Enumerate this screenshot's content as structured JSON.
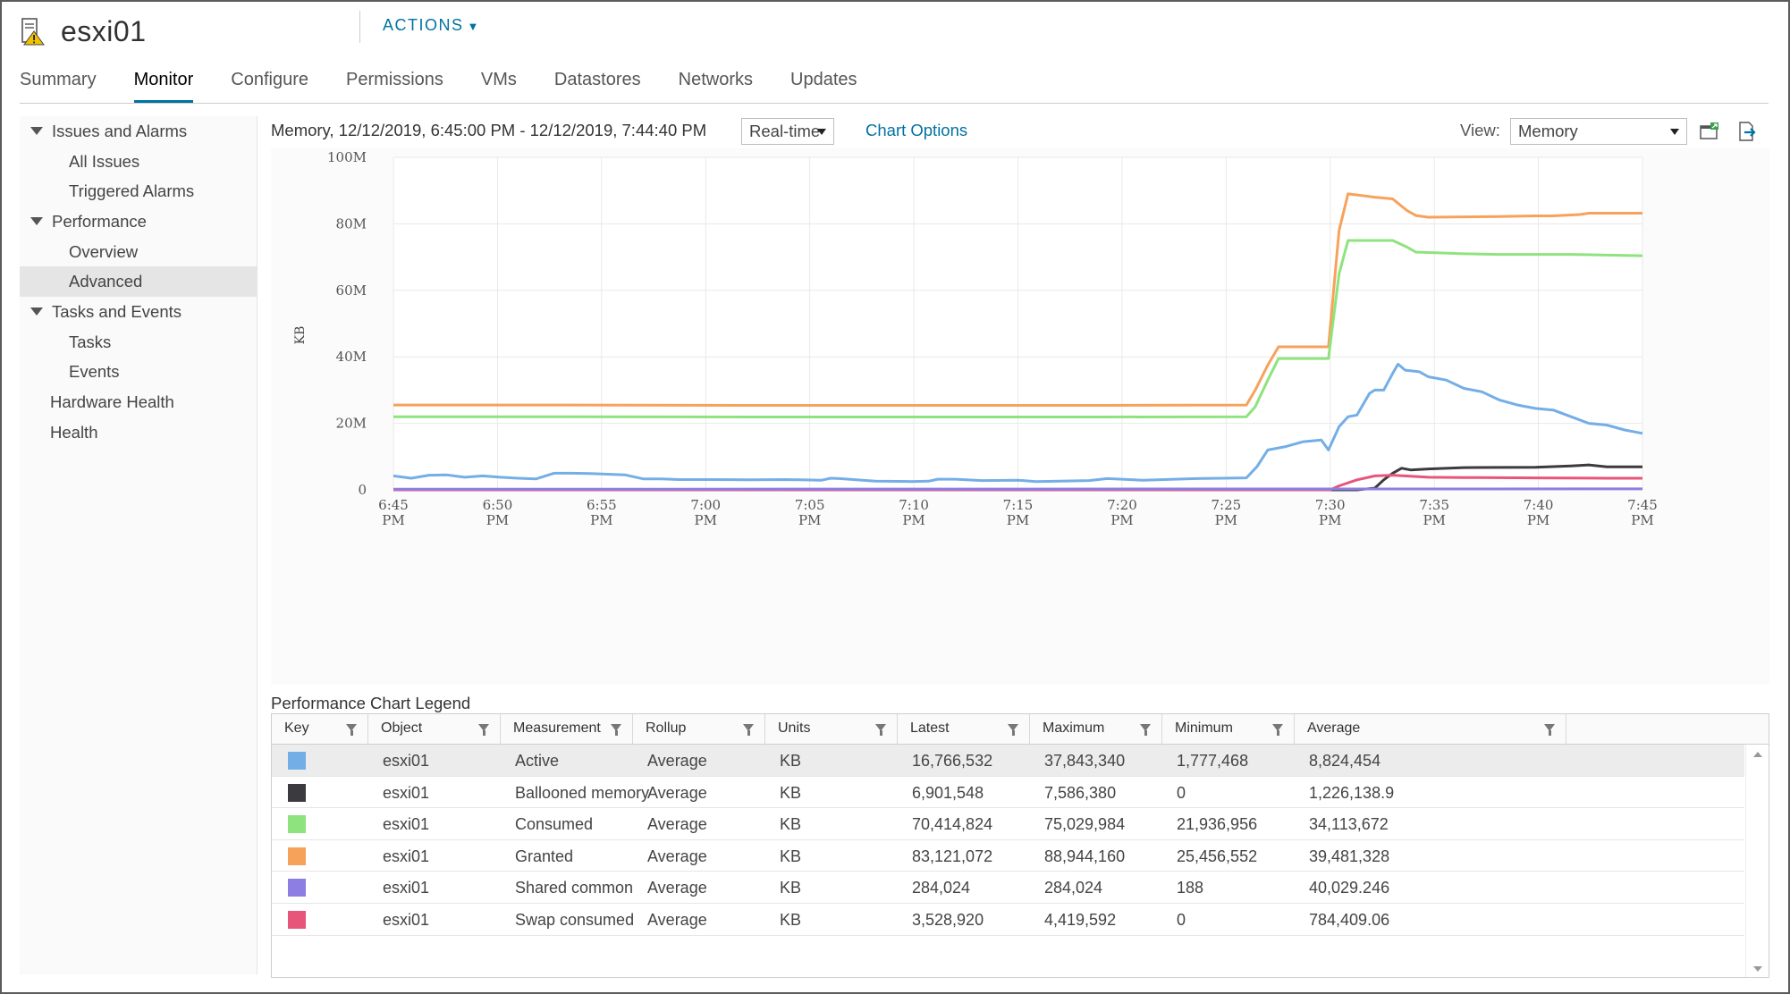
{
  "header": {
    "title": "esxi01",
    "actions_label": "ACTIONS",
    "icon": "host-warning-icon"
  },
  "tabs": [
    {
      "label": "Summary",
      "active": false
    },
    {
      "label": "Monitor",
      "active": true
    },
    {
      "label": "Configure",
      "active": false
    },
    {
      "label": "Permissions",
      "active": false
    },
    {
      "label": "VMs",
      "active": false
    },
    {
      "label": "Datastores",
      "active": false
    },
    {
      "label": "Networks",
      "active": false
    },
    {
      "label": "Updates",
      "active": false
    }
  ],
  "sidebar": {
    "groups": [
      {
        "label": "Issues and Alarms",
        "expanded": true,
        "items": [
          "All Issues",
          "Triggered Alarms"
        ]
      },
      {
        "label": "Performance",
        "expanded": true,
        "items": [
          "Overview",
          "Advanced"
        ]
      },
      {
        "label": "Tasks and Events",
        "expanded": true,
        "items": [
          "Tasks",
          "Events"
        ]
      },
      {
        "label": "Hardware Health",
        "expanded": false,
        "items": []
      },
      {
        "label": "Health",
        "expanded": false,
        "items": []
      }
    ],
    "selected": "Advanced"
  },
  "chart_header": {
    "title": "Memory, 12/12/2019, 6:45:00 PM - 12/12/2019, 7:44:40 PM",
    "timespan_value": "Real-time",
    "chart_options_label": "Chart Options",
    "view_label": "View:",
    "view_value": "Memory"
  },
  "chart_data": {
    "type": "line",
    "title": "",
    "ylabel": "KB",
    "ylim": [
      0,
      100000000
    ],
    "y_ticks": [
      "0",
      "20M",
      "40M",
      "60M",
      "80M",
      "100M"
    ],
    "x_ticks": [
      "6:45 PM",
      "6:50 PM",
      "6:55 PM",
      "7:00 PM",
      "7:05 PM",
      "7:10 PM",
      "7:15 PM",
      "7:20 PM",
      "7:25 PM",
      "7:30 PM",
      "7:35 PM",
      "7:40 PM",
      "7:45 PM"
    ],
    "x_minutes_range": [
      0,
      60
    ],
    "grid": true,
    "series": [
      {
        "name": "Granted",
        "color": "#f7a25b",
        "points": [
          [
            0,
            25.5
          ],
          [
            10,
            25.5
          ],
          [
            20,
            25.4
          ],
          [
            30,
            25.4
          ],
          [
            40,
            25.4
          ],
          [
            47.8,
            25.5
          ],
          [
            48.3,
            30
          ],
          [
            49,
            37.5
          ],
          [
            49.6,
            43
          ],
          [
            52,
            43
          ],
          [
            52.4,
            43
          ],
          [
            53,
            78
          ],
          [
            53.5,
            89
          ],
          [
            55,
            88
          ],
          [
            56,
            87.5
          ],
          [
            56.8,
            84
          ],
          [
            57.3,
            82.5
          ],
          [
            58,
            82
          ],
          [
            62,
            82.2
          ],
          [
            64,
            82.4
          ],
          [
            65,
            82.4
          ],
          [
            66.5,
            82.8
          ],
          [
            67,
            83.2
          ],
          [
            70,
            83.2
          ]
        ]
      },
      {
        "name": "Consumed",
        "color": "#8fe37e",
        "points": [
          [
            0,
            22
          ],
          [
            10,
            22
          ],
          [
            20,
            21.9
          ],
          [
            30,
            21.9
          ],
          [
            40,
            21.9
          ],
          [
            47.8,
            22
          ],
          [
            48.3,
            25
          ],
          [
            49,
            33
          ],
          [
            49.6,
            39.5
          ],
          [
            52,
            39.5
          ],
          [
            52.4,
            39.5
          ],
          [
            53,
            65
          ],
          [
            53.5,
            75
          ],
          [
            56,
            75
          ],
          [
            56.8,
            73
          ],
          [
            57.3,
            71.5
          ],
          [
            60,
            71
          ],
          [
            62,
            70.8
          ],
          [
            66,
            70.8
          ],
          [
            70,
            70.4
          ]
        ]
      },
      {
        "name": "Active",
        "color": "#74aee6",
        "points": [
          [
            0,
            4.2
          ],
          [
            1,
            3.5
          ],
          [
            2,
            4.4
          ],
          [
            3,
            4.5
          ],
          [
            4,
            3.8
          ],
          [
            5,
            4.2
          ],
          [
            6,
            3.8
          ],
          [
            7,
            3.5
          ],
          [
            8,
            3.3
          ],
          [
            9,
            5
          ],
          [
            10,
            5
          ],
          [
            11,
            4.9
          ],
          [
            12,
            4.7
          ],
          [
            13,
            4.5
          ],
          [
            14,
            3.3
          ],
          [
            15,
            3.3
          ],
          [
            16,
            3.1
          ],
          [
            18,
            3.1
          ],
          [
            20,
            3.0
          ],
          [
            22,
            3.1
          ],
          [
            24,
            2.9
          ],
          [
            24.5,
            3.5
          ],
          [
            25,
            3.4
          ],
          [
            27,
            2.6
          ],
          [
            29,
            2.5
          ],
          [
            30,
            2.6
          ],
          [
            30.5,
            3.2
          ],
          [
            31.5,
            3.2
          ],
          [
            33,
            2.8
          ],
          [
            35,
            2.9
          ],
          [
            36,
            2.5
          ],
          [
            39,
            2.8
          ],
          [
            40,
            3.4
          ],
          [
            42,
            2.9
          ],
          [
            45,
            3.4
          ],
          [
            47.8,
            3.6
          ],
          [
            48.4,
            7
          ],
          [
            49,
            12
          ],
          [
            50,
            13
          ],
          [
            51,
            14.5
          ],
          [
            52,
            15
          ],
          [
            52.4,
            12
          ],
          [
            53,
            19
          ],
          [
            53.5,
            22
          ],
          [
            54,
            22.5
          ],
          [
            54.7,
            29
          ],
          [
            55,
            30
          ],
          [
            55.5,
            30
          ],
          [
            56,
            35
          ],
          [
            56.3,
            37.8
          ],
          [
            56.7,
            36
          ],
          [
            57.5,
            35.5
          ],
          [
            58,
            34
          ],
          [
            59,
            33
          ],
          [
            60,
            30.5
          ],
          [
            61,
            29.5
          ],
          [
            62,
            27
          ],
          [
            63,
            25.5
          ],
          [
            64,
            24.5
          ],
          [
            65,
            24
          ],
          [
            66,
            22
          ],
          [
            67,
            20
          ],
          [
            68,
            19.5
          ],
          [
            69,
            18
          ],
          [
            70,
            17
          ]
        ]
      },
      {
        "name": "Ballooned memory",
        "color": "#3b3b3f",
        "points": [
          [
            0,
            0
          ],
          [
            54,
            0
          ],
          [
            55,
            0.5
          ],
          [
            55.5,
            3
          ],
          [
            56,
            5
          ],
          [
            56.5,
            6.5
          ],
          [
            57,
            6
          ],
          [
            58,
            6.3
          ],
          [
            60,
            6.7
          ],
          [
            64,
            6.8
          ],
          [
            66,
            7.2
          ],
          [
            67,
            7.5
          ],
          [
            68,
            6.9
          ],
          [
            70,
            6.9
          ]
        ]
      },
      {
        "name": "Swap consumed",
        "color": "#e8557a",
        "points": [
          [
            0,
            0
          ],
          [
            52.5,
            0
          ],
          [
            53,
            1.2
          ],
          [
            54,
            3
          ],
          [
            55,
            4.2
          ],
          [
            56,
            4.4
          ],
          [
            57,
            4.1
          ],
          [
            58,
            3.8
          ],
          [
            60,
            3.7
          ],
          [
            64,
            3.6
          ],
          [
            68,
            3.5
          ],
          [
            70,
            3.5
          ]
        ]
      },
      {
        "name": "Shared common",
        "color": "#8d7ee3",
        "points": [
          [
            0,
            0.2
          ],
          [
            70,
            0.3
          ]
        ]
      }
    ]
  },
  "legend": {
    "title": "Performance Chart Legend",
    "columns": [
      "Key",
      "Object",
      "Measurement",
      "Rollup",
      "Units",
      "Latest",
      "Maximum",
      "Minimum",
      "Average"
    ],
    "rows": [
      {
        "color": "#74aee6",
        "object": "esxi01",
        "measurement": "Active",
        "rollup": "Average",
        "units": "KB",
        "latest": "16,766,532",
        "maximum": "37,843,340",
        "minimum": "1,777,468",
        "average": "8,824,454"
      },
      {
        "color": "#3b3b3f",
        "object": "esxi01",
        "measurement": "Ballooned memory",
        "rollup": "Average",
        "units": "KB",
        "latest": "6,901,548",
        "maximum": "7,586,380",
        "minimum": "0",
        "average": "1,226,138.9"
      },
      {
        "color": "#8fe37e",
        "object": "esxi01",
        "measurement": "Consumed",
        "rollup": "Average",
        "units": "KB",
        "latest": "70,414,824",
        "maximum": "75,029,984",
        "minimum": "21,936,956",
        "average": "34,113,672"
      },
      {
        "color": "#f7a25b",
        "object": "esxi01",
        "measurement": "Granted",
        "rollup": "Average",
        "units": "KB",
        "latest": "83,121,072",
        "maximum": "88,944,160",
        "minimum": "25,456,552",
        "average": "39,481,328"
      },
      {
        "color": "#8d7ee3",
        "object": "esxi01",
        "measurement": "Shared common",
        "rollup": "Average",
        "units": "KB",
        "latest": "284,024",
        "maximum": "284,024",
        "minimum": "188",
        "average": "40,029.246"
      },
      {
        "color": "#e8557a",
        "object": "esxi01",
        "measurement": "Swap consumed",
        "rollup": "Average",
        "units": "KB",
        "latest": "3,528,920",
        "maximum": "4,419,592",
        "minimum": "0",
        "average": "784,409.06"
      }
    ]
  }
}
